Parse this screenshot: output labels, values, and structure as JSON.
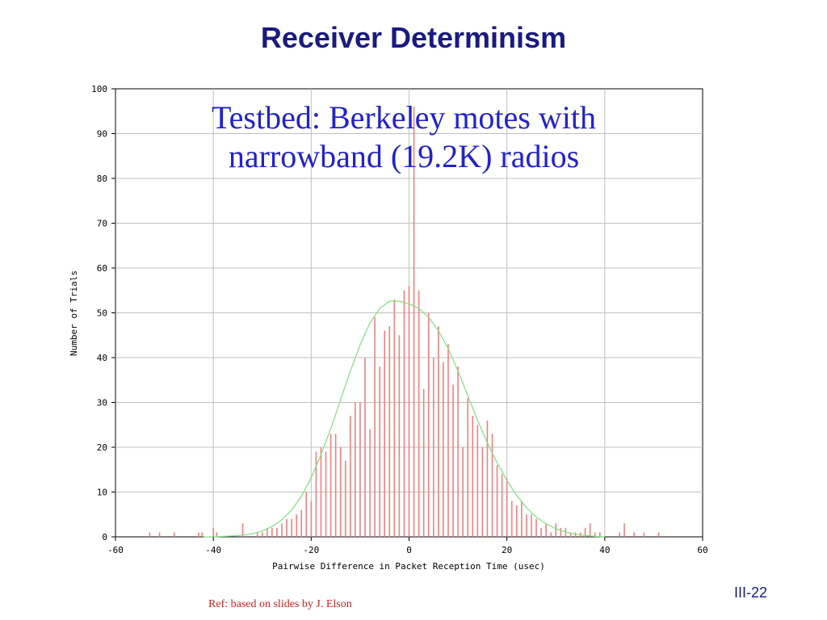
{
  "slide": {
    "title": "Receiver Determinism",
    "overlay_line1": "Testbed: Berkeley motes with",
    "overlay_line2": "narrowband (19.2K) radios",
    "reference": "Ref: based on slides by J. Elson",
    "page_number": "III-22"
  },
  "colors": {
    "title": "#1a1a80",
    "overlay_text": "#2222cc",
    "bars": "#f08080",
    "fit_curve": "#80e080",
    "grid": "#c0c0c0",
    "reference": "#cc2222"
  },
  "chart_data": {
    "type": "bar",
    "xlabel": "Pairwise Difference in Packet Reception Time (usec)",
    "ylabel": "Number of Trials",
    "xlim": [
      -60,
      60
    ],
    "ylim": [
      0,
      100
    ],
    "x_ticks": [
      -60,
      -40,
      -20,
      0,
      20,
      40,
      60
    ],
    "y_ticks": [
      0,
      10,
      20,
      30,
      40,
      50,
      60,
      70,
      80,
      90,
      100
    ],
    "grid": true,
    "series": [
      {
        "type": "bar",
        "x": [
          -53,
          -51,
          -48,
          -43,
          -42.3,
          -40,
          -39.3,
          -34,
          -31,
          -30,
          -29,
          -28,
          -27,
          -26,
          -25,
          -24,
          -23,
          -22,
          -21,
          -20,
          -19,
          -18,
          -17,
          -16,
          -15,
          -14,
          -13,
          -12,
          -11,
          -10,
          -9,
          -8,
          -7,
          -6,
          -5,
          -4,
          -3,
          -2,
          -1,
          0,
          1,
          2,
          3,
          4,
          5,
          6,
          7,
          8,
          9,
          10,
          11,
          12,
          13,
          14,
          15,
          16,
          17,
          18,
          19,
          20,
          21,
          22,
          23,
          24,
          25,
          26,
          27,
          28,
          29,
          30,
          31,
          32,
          33,
          34,
          35,
          36,
          37,
          38,
          39,
          43,
          44,
          46,
          48,
          51
        ],
        "values": [
          1,
          1,
          1,
          1,
          1,
          2,
          1,
          3,
          1,
          1,
          2,
          2,
          2,
          3,
          4,
          4,
          5,
          6,
          10,
          8,
          19,
          20,
          19,
          23,
          23,
          20,
          17,
          27,
          30,
          30,
          40,
          24,
          49,
          38,
          46,
          47,
          53,
          45,
          55,
          56,
          96,
          55,
          33,
          50,
          40,
          47,
          39,
          43,
          34,
          38,
          20,
          31,
          27,
          25,
          20,
          26,
          23,
          16,
          14,
          13,
          8,
          7,
          8,
          5,
          5,
          4,
          2,
          3,
          1,
          3,
          2,
          2,
          1,
          1,
          1,
          2,
          3,
          1,
          1,
          1,
          3,
          1,
          1,
          1
        ]
      },
      {
        "type": "line",
        "x": [
          -42,
          -40,
          -38,
          -36,
          -34,
          -32,
          -30,
          -28,
          -26,
          -24,
          -22,
          -20,
          -18,
          -16,
          -14,
          -12,
          -10,
          -8,
          -6,
          -4,
          -2,
          0,
          2,
          4,
          6,
          8,
          10,
          12,
          14,
          16,
          18,
          20,
          22,
          24,
          26,
          28,
          30,
          32,
          34,
          36,
          38,
          40
        ],
        "values": [
          0,
          0,
          0.1,
          0.2,
          0.4,
          0.7,
          1.3,
          2.3,
          3.8,
          6,
          9.1,
          13.2,
          18.3,
          24.2,
          30.6,
          37,
          42.9,
          47.7,
          51,
          52.6,
          52.6,
          52,
          51,
          49,
          46,
          42,
          37,
          31.5,
          26,
          21,
          16.5,
          12.6,
          9.2,
          6.5,
          4.4,
          2.9,
          1.8,
          1.1,
          0.6,
          0.3,
          0.1,
          0
        ]
      }
    ]
  }
}
